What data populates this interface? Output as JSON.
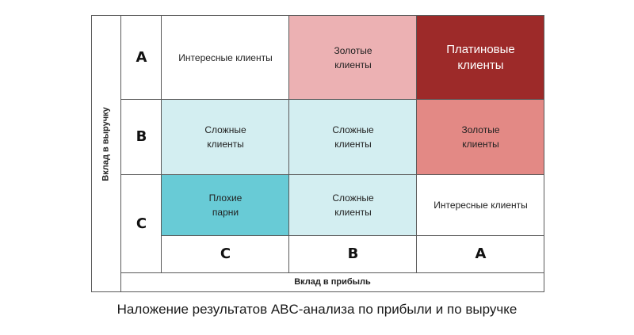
{
  "y_axis_label": "Вклад в выручку",
  "x_axis_label": "Вклад в прибыль",
  "row_labels": [
    "A",
    "B",
    "C"
  ],
  "col_labels": [
    "C",
    "B",
    "A"
  ],
  "cells": {
    "a_c": {
      "line1": "Интересные клиенты",
      "line2": "",
      "color": "#ffffff"
    },
    "a_b": {
      "line1": "Золотые",
      "line2": "клиенты",
      "color": "#ecb1b3"
    },
    "a_a": {
      "line1": "Платиновые",
      "line2": "клиенты",
      "color": "#9d2a29"
    },
    "b_c": {
      "line1": "Сложные",
      "line2": "клиенты",
      "color": "#d3eef1"
    },
    "b_b": {
      "line1": "Сложные",
      "line2": "клиенты",
      "color": "#d3eef1"
    },
    "b_a": {
      "line1": "Золотые",
      "line2": "клиенты",
      "color": "#e38985"
    },
    "c_c": {
      "line1": "Плохие",
      "line2": "парни",
      "color": "#68cbd6"
    },
    "c_b": {
      "line1": "Сложные",
      "line2": "клиенты",
      "color": "#d3eef1"
    },
    "c_a": {
      "line1": "Интересные клиенты",
      "line2": "",
      "color": "#ffffff"
    }
  },
  "caption": "Наложение результатов ABC-анализа по прибыли и по выручке"
}
